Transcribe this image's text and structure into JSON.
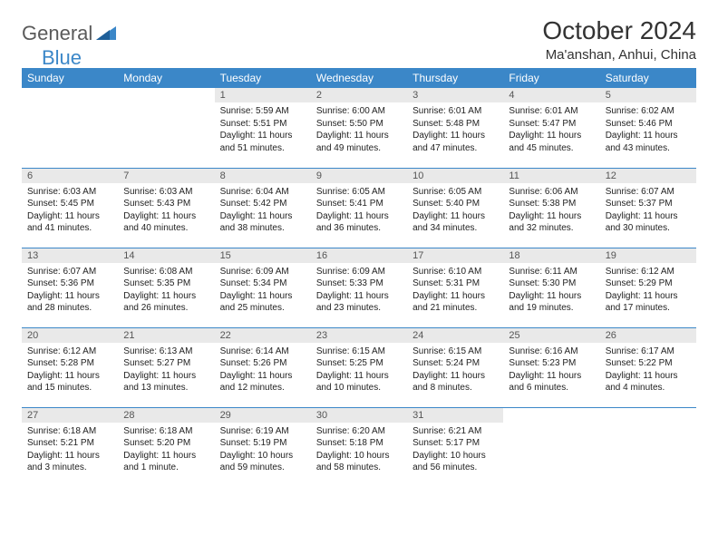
{
  "logo": {
    "text1": "General",
    "text2": "Blue"
  },
  "title": "October 2024",
  "location": "Ma'anshan, Anhui, China",
  "styling": {
    "header_bg": "#3b87c8",
    "header_fg": "#ffffff",
    "row_divider": "#3b87c8",
    "daynum_bg": "#e9e9e9",
    "daynum_fg": "#555555",
    "body_fg": "#222222",
    "page_bg": "#ffffff",
    "title_fontsize": 28,
    "location_fontsize": 15,
    "header_fontsize": 12,
    "daynum_fontsize": 11,
    "cell_fontsize": 10,
    "columns": 7,
    "rows": 5
  },
  "weekdays": [
    "Sunday",
    "Monday",
    "Tuesday",
    "Wednesday",
    "Thursday",
    "Friday",
    "Saturday"
  ],
  "weeks": [
    [
      null,
      null,
      {
        "n": "1",
        "sr": "Sunrise: 5:59 AM",
        "ss": "Sunset: 5:51 PM",
        "d1": "Daylight: 11 hours",
        "d2": "and 51 minutes."
      },
      {
        "n": "2",
        "sr": "Sunrise: 6:00 AM",
        "ss": "Sunset: 5:50 PM",
        "d1": "Daylight: 11 hours",
        "d2": "and 49 minutes."
      },
      {
        "n": "3",
        "sr": "Sunrise: 6:01 AM",
        "ss": "Sunset: 5:48 PM",
        "d1": "Daylight: 11 hours",
        "d2": "and 47 minutes."
      },
      {
        "n": "4",
        "sr": "Sunrise: 6:01 AM",
        "ss": "Sunset: 5:47 PM",
        "d1": "Daylight: 11 hours",
        "d2": "and 45 minutes."
      },
      {
        "n": "5",
        "sr": "Sunrise: 6:02 AM",
        "ss": "Sunset: 5:46 PM",
        "d1": "Daylight: 11 hours",
        "d2": "and 43 minutes."
      }
    ],
    [
      {
        "n": "6",
        "sr": "Sunrise: 6:03 AM",
        "ss": "Sunset: 5:45 PM",
        "d1": "Daylight: 11 hours",
        "d2": "and 41 minutes."
      },
      {
        "n": "7",
        "sr": "Sunrise: 6:03 AM",
        "ss": "Sunset: 5:43 PM",
        "d1": "Daylight: 11 hours",
        "d2": "and 40 minutes."
      },
      {
        "n": "8",
        "sr": "Sunrise: 6:04 AM",
        "ss": "Sunset: 5:42 PM",
        "d1": "Daylight: 11 hours",
        "d2": "and 38 minutes."
      },
      {
        "n": "9",
        "sr": "Sunrise: 6:05 AM",
        "ss": "Sunset: 5:41 PM",
        "d1": "Daylight: 11 hours",
        "d2": "and 36 minutes."
      },
      {
        "n": "10",
        "sr": "Sunrise: 6:05 AM",
        "ss": "Sunset: 5:40 PM",
        "d1": "Daylight: 11 hours",
        "d2": "and 34 minutes."
      },
      {
        "n": "11",
        "sr": "Sunrise: 6:06 AM",
        "ss": "Sunset: 5:38 PM",
        "d1": "Daylight: 11 hours",
        "d2": "and 32 minutes."
      },
      {
        "n": "12",
        "sr": "Sunrise: 6:07 AM",
        "ss": "Sunset: 5:37 PM",
        "d1": "Daylight: 11 hours",
        "d2": "and 30 minutes."
      }
    ],
    [
      {
        "n": "13",
        "sr": "Sunrise: 6:07 AM",
        "ss": "Sunset: 5:36 PM",
        "d1": "Daylight: 11 hours",
        "d2": "and 28 minutes."
      },
      {
        "n": "14",
        "sr": "Sunrise: 6:08 AM",
        "ss": "Sunset: 5:35 PM",
        "d1": "Daylight: 11 hours",
        "d2": "and 26 minutes."
      },
      {
        "n": "15",
        "sr": "Sunrise: 6:09 AM",
        "ss": "Sunset: 5:34 PM",
        "d1": "Daylight: 11 hours",
        "d2": "and 25 minutes."
      },
      {
        "n": "16",
        "sr": "Sunrise: 6:09 AM",
        "ss": "Sunset: 5:33 PM",
        "d1": "Daylight: 11 hours",
        "d2": "and 23 minutes."
      },
      {
        "n": "17",
        "sr": "Sunrise: 6:10 AM",
        "ss": "Sunset: 5:31 PM",
        "d1": "Daylight: 11 hours",
        "d2": "and 21 minutes."
      },
      {
        "n": "18",
        "sr": "Sunrise: 6:11 AM",
        "ss": "Sunset: 5:30 PM",
        "d1": "Daylight: 11 hours",
        "d2": "and 19 minutes."
      },
      {
        "n": "19",
        "sr": "Sunrise: 6:12 AM",
        "ss": "Sunset: 5:29 PM",
        "d1": "Daylight: 11 hours",
        "d2": "and 17 minutes."
      }
    ],
    [
      {
        "n": "20",
        "sr": "Sunrise: 6:12 AM",
        "ss": "Sunset: 5:28 PM",
        "d1": "Daylight: 11 hours",
        "d2": "and 15 minutes."
      },
      {
        "n": "21",
        "sr": "Sunrise: 6:13 AM",
        "ss": "Sunset: 5:27 PM",
        "d1": "Daylight: 11 hours",
        "d2": "and 13 minutes."
      },
      {
        "n": "22",
        "sr": "Sunrise: 6:14 AM",
        "ss": "Sunset: 5:26 PM",
        "d1": "Daylight: 11 hours",
        "d2": "and 12 minutes."
      },
      {
        "n": "23",
        "sr": "Sunrise: 6:15 AM",
        "ss": "Sunset: 5:25 PM",
        "d1": "Daylight: 11 hours",
        "d2": "and 10 minutes."
      },
      {
        "n": "24",
        "sr": "Sunrise: 6:15 AM",
        "ss": "Sunset: 5:24 PM",
        "d1": "Daylight: 11 hours",
        "d2": "and 8 minutes."
      },
      {
        "n": "25",
        "sr": "Sunrise: 6:16 AM",
        "ss": "Sunset: 5:23 PM",
        "d1": "Daylight: 11 hours",
        "d2": "and 6 minutes."
      },
      {
        "n": "26",
        "sr": "Sunrise: 6:17 AM",
        "ss": "Sunset: 5:22 PM",
        "d1": "Daylight: 11 hours",
        "d2": "and 4 minutes."
      }
    ],
    [
      {
        "n": "27",
        "sr": "Sunrise: 6:18 AM",
        "ss": "Sunset: 5:21 PM",
        "d1": "Daylight: 11 hours",
        "d2": "and 3 minutes."
      },
      {
        "n": "28",
        "sr": "Sunrise: 6:18 AM",
        "ss": "Sunset: 5:20 PM",
        "d1": "Daylight: 11 hours",
        "d2": "and 1 minute."
      },
      {
        "n": "29",
        "sr": "Sunrise: 6:19 AM",
        "ss": "Sunset: 5:19 PM",
        "d1": "Daylight: 10 hours",
        "d2": "and 59 minutes."
      },
      {
        "n": "30",
        "sr": "Sunrise: 6:20 AM",
        "ss": "Sunset: 5:18 PM",
        "d1": "Daylight: 10 hours",
        "d2": "and 58 minutes."
      },
      {
        "n": "31",
        "sr": "Sunrise: 6:21 AM",
        "ss": "Sunset: 5:17 PM",
        "d1": "Daylight: 10 hours",
        "d2": "and 56 minutes."
      },
      null,
      null
    ]
  ]
}
